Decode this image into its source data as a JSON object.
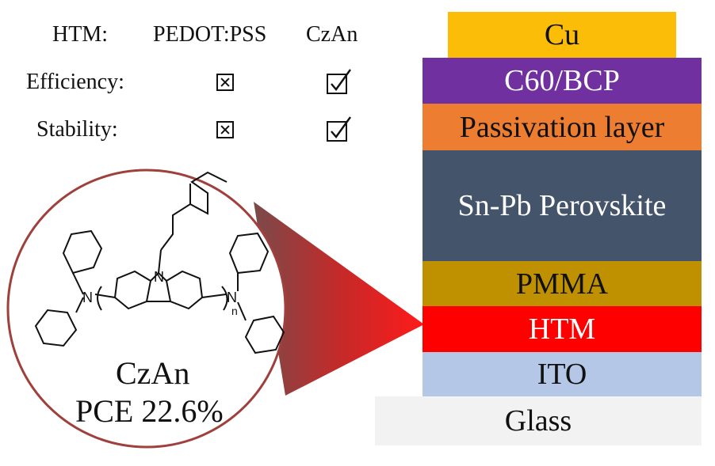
{
  "table": {
    "headers": [
      "HTM:",
      "PEDOT:PSS",
      "CzAn"
    ],
    "rows": [
      {
        "label": "Efficiency:",
        "pedot": "fail",
        "czan": "pass"
      },
      {
        "label": "Stability:",
        "pedot": "fail",
        "czan": "pass"
      }
    ]
  },
  "molecule": {
    "name": "CzAn",
    "pce": "PCE 22.6%",
    "atoms": {
      "n_left": "N",
      "n_center": "N",
      "n_right": "N",
      "repeat": "n"
    }
  },
  "device_stack": [
    {
      "label": "Cu",
      "color": "#fbbd08",
      "text_color": "#111111"
    },
    {
      "label": "C60/BCP",
      "color": "#7030a0",
      "text_color": "#ffffff"
    },
    {
      "label": "Passivation layer",
      "color": "#ed7d31",
      "text_color": "#111111"
    },
    {
      "label": "Sn-Pb Perovskite",
      "color": "#44546a",
      "text_color": "#ffffff"
    },
    {
      "label": "PMMA",
      "color": "#bf9000",
      "text_color": "#111111"
    },
    {
      "label": "HTM",
      "color": "#ff0000",
      "text_color": "#ffffff"
    },
    {
      "label": "ITO",
      "color": "#b4c7e7",
      "text_color": "#111111"
    },
    {
      "label": "Glass",
      "color": "#f2f2f2",
      "text_color": "#111111"
    }
  ],
  "colors": {
    "zoom_red": "#d62020",
    "circle_border": "#a0403c"
  }
}
